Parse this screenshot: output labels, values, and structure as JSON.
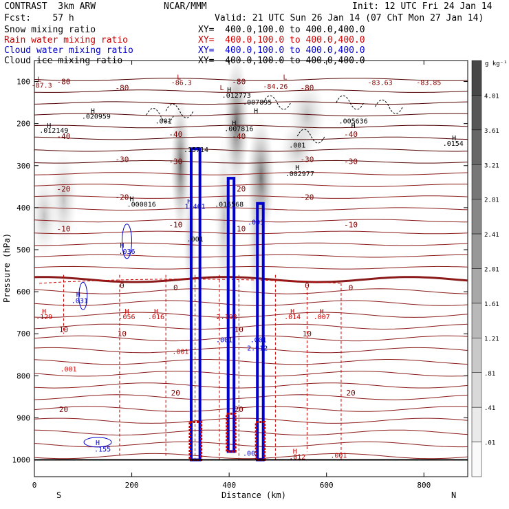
{
  "header": {
    "title": "CONTRAST  3km ARW",
    "model": "NCAR/MMM",
    "init": "Init: 12 UTC Fri 24 Jan 14",
    "fcst": "Fcst:    57 h",
    "valid": "Valid: 21 UTC Sun 26 Jan 14 (07 ChT Mon 27 Jan 14)"
  },
  "fields": [
    {
      "name": "Snow mixing ratio",
      "color": "#000000",
      "xy": ""
    },
    {
      "name": "Rain water mixing ratio",
      "color": "#cc0000",
      "xy": "XY=  400.0,100.0 to 400.0,400.0"
    },
    {
      "name": "Cloud water mixing ratio",
      "color": "#0000cc",
      "xy": "XY=  400.0,100.0 to 400.0,400.0"
    },
    {
      "name": "Cloud ice mixing ratio",
      "color": "#000000",
      "xy": "XY=  400.0,100.0 to 400.0,400.0"
    }
  ],
  "top_xy": "XY=  400.0,100.0 to 400.0,400.0",
  "chart_data": {
    "type": "cross-section contour",
    "ylabel": "Pressure (hPa)",
    "xlabel": "Distance (km)",
    "xlim": [
      0,
      890
    ],
    "ylim": [
      1040,
      50
    ],
    "x_ticks": [
      0,
      200,
      400,
      600,
      800
    ],
    "y_ticks": [
      100,
      200,
      300,
      400,
      500,
      600,
      700,
      800,
      900,
      1000
    ],
    "left_end": "S",
    "right_end": "N",
    "colorbar": {
      "unit": "g kg⁻¹",
      "levels": [
        "4.01",
        "3.61",
        "3.21",
        "2.81",
        "2.41",
        "2.01",
        "1.61",
        "1.21",
        ".81",
        ".41",
        ".01"
      ]
    },
    "temperature_isotherms_C": [
      {
        "label": "-80",
        "p": 100
      },
      {
        "label": "-80",
        "p": 115
      },
      {
        "label": "-40",
        "p": 225
      },
      {
        "label": "-40",
        "p": 230
      },
      {
        "label": "-30",
        "p": 285
      },
      {
        "label": "-30",
        "p": 290
      },
      {
        "label": "-20",
        "p": 355
      },
      {
        "label": "-20",
        "p": 375
      },
      {
        "label": "-10",
        "p": 440
      },
      {
        "label": "-10",
        "p": 450
      },
      {
        "label": "0",
        "p": 585
      },
      {
        "label": "0",
        "p": 590
      },
      {
        "label": "10",
        "p": 690
      },
      {
        "label": "10",
        "p": 700
      },
      {
        "label": "20",
        "p": 840
      },
      {
        "label": "20",
        "p": 880
      }
    ],
    "point_labels": [
      {
        "text": "L",
        "x": 10,
        "p": 100,
        "color": "#880000"
      },
      {
        "text": "-87.3",
        "x": 15,
        "p": 115,
        "color": "#880000"
      },
      {
        "text": "L",
        "x": 297,
        "p": 95,
        "color": "#880000"
      },
      {
        "text": "-86.3",
        "x": 302,
        "p": 108,
        "color": "#880000"
      },
      {
        "text": "L",
        "x": 385,
        "p": 120,
        "color": "#880000"
      },
      {
        "text": "L",
        "x": 515,
        "p": 95,
        "color": "#880000"
      },
      {
        "text": "-84.26",
        "x": 495,
        "p": 117,
        "color": "#880000"
      },
      {
        "text": "-83.63",
        "x": 710,
        "p": 108,
        "color": "#880000"
      },
      {
        "text": "-83.85",
        "x": 810,
        "p": 108,
        "color": "#880000"
      },
      {
        "text": "H",
        "x": 120,
        "p": 175,
        "color": "#000000"
      },
      {
        "text": ".020959",
        "x": 127,
        "p": 188,
        "color": "#000000"
      },
      {
        "text": "H",
        "x": 400,
        "p": 125,
        "color": "#000000"
      },
      {
        "text": ".012773",
        "x": 415,
        "p": 138,
        "color": "#000000"
      },
      {
        "text": "H",
        "x": 455,
        "p": 175,
        "color": "#000000"
      },
      {
        "text": ".007895",
        "x": 458,
        "p": 155,
        "color": "#000000"
      },
      {
        "text": ".001",
        "x": 265,
        "p": 200,
        "color": "#000000"
      },
      {
        "text": "H",
        "x": 30,
        "p": 210,
        "color": "#000000"
      },
      {
        "text": ".012149",
        "x": 40,
        "p": 222,
        "color": "#000000"
      },
      {
        "text": "H",
        "x": 410,
        "p": 205,
        "color": "#000000"
      },
      {
        "text": ".007816",
        "x": 420,
        "p": 218,
        "color": "#000000"
      },
      {
        "text": "H",
        "x": 655,
        "p": 210,
        "color": "#000000"
      },
      {
        "text": ".005636",
        "x": 655,
        "p": 200,
        "color": "#000000"
      },
      {
        "text": "H",
        "x": 862,
        "p": 240,
        "color": "#000000"
      },
      {
        "text": ".0154",
        "x": 860,
        "p": 253,
        "color": "#000000"
      },
      {
        "text": ".001",
        "x": 540,
        "p": 257,
        "color": "#000000"
      },
      {
        "text": ".15714",
        "x": 332,
        "p": 268,
        "color": "#000000"
      },
      {
        "text": "H",
        "x": 540,
        "p": 310,
        "color": "#000000"
      },
      {
        "text": ".002977",
        "x": 545,
        "p": 325,
        "color": "#000000"
      },
      {
        "text": "H",
        "x": 200,
        "p": 385,
        "color": "#000000"
      },
      {
        "text": ".000016",
        "x": 220,
        "p": 398,
        "color": "#000000"
      },
      {
        "text": ".016568",
        "x": 400,
        "p": 398,
        "color": "#000000"
      },
      {
        "text": "H",
        "x": 318,
        "p": 390,
        "color": "#0000cc"
      },
      {
        "text": "1.461",
        "x": 330,
        "p": 403,
        "color": "#0000cc"
      },
      {
        "text": ".001",
        "x": 455,
        "p": 440,
        "color": "#0000cc"
      },
      {
        "text": "H",
        "x": 180,
        "p": 495,
        "color": "#0000cc"
      },
      {
        "text": ".036",
        "x": 190,
        "p": 510,
        "color": "#0000cc"
      },
      {
        "text": ".001",
        "x": 330,
        "p": 480,
        "color": "#000000"
      },
      {
        "text": "H",
        "x": 90,
        "p": 612,
        "color": "#0000cc"
      },
      {
        "text": ".031",
        "x": 93,
        "p": 627,
        "color": "#0000cc"
      },
      {
        "text": "H",
        "x": 20,
        "p": 652,
        "color": "#cc0000"
      },
      {
        "text": ".129",
        "x": 20,
        "p": 665,
        "color": "#cc0000"
      },
      {
        "text": "H",
        "x": 190,
        "p": 652,
        "color": "#cc0000"
      },
      {
        "text": ".056",
        "x": 190,
        "p": 665,
        "color": "#cc0000"
      },
      {
        "text": "H",
        "x": 250,
        "p": 652,
        "color": "#cc0000"
      },
      {
        "text": ".016",
        "x": 250,
        "p": 665,
        "color": "#cc0000"
      },
      {
        "text": "H",
        "x": 530,
        "p": 652,
        "color": "#cc0000"
      },
      {
        "text": ".014",
        "x": 530,
        "p": 665,
        "color": "#cc0000"
      },
      {
        "text": "H",
        "x": 590,
        "p": 652,
        "color": "#cc0000"
      },
      {
        "text": ".007",
        "x": 590,
        "p": 665,
        "color": "#cc0000"
      },
      {
        "text": "2.198",
        "x": 395,
        "p": 665,
        "color": "#cc0000"
      },
      {
        "text": ".001",
        "x": 390,
        "p": 720,
        "color": "#0000cc"
      },
      {
        "text": ".001",
        "x": 460,
        "p": 720,
        "color": "#0000cc"
      },
      {
        "text": "2.912",
        "x": 458,
        "p": 740,
        "color": "#0000cc"
      },
      {
        "text": ".001",
        "x": 300,
        "p": 748,
        "color": "#cc0000"
      },
      {
        "text": ".001",
        "x": 70,
        "p": 790,
        "color": "#cc0000"
      },
      {
        "text": "H",
        "x": 130,
        "p": 965,
        "color": "#0000cc"
      },
      {
        "text": ".155",
        "x": 140,
        "p": 980,
        "color": "#0000cc"
      },
      {
        "text": "H",
        "x": 535,
        "p": 985,
        "color": "#cc0000"
      },
      {
        "text": ".012",
        "x": 540,
        "p": 998,
        "color": "#cc0000"
      },
      {
        "text": ".001",
        "x": 625,
        "p": 995,
        "color": "#cc0000"
      },
      {
        "text": ".001",
        "x": 445,
        "p": 990,
        "color": "#0000cc"
      }
    ]
  }
}
